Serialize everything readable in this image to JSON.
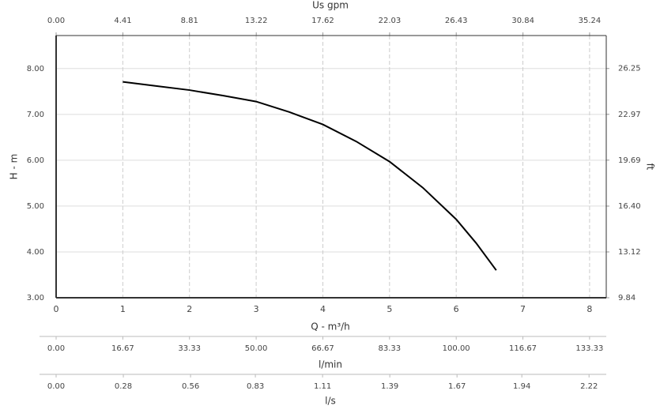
{
  "chart_data": {
    "type": "line",
    "x": [
      1,
      1.5,
      2,
      2.5,
      3,
      3.5,
      4,
      4.5,
      5,
      5.5,
      6,
      6.3,
      6.6
    ],
    "values": [
      7.71,
      7.62,
      7.53,
      7.41,
      7.28,
      7.05,
      6.78,
      6.41,
      5.97,
      5.4,
      4.71,
      4.19,
      3.6
    ],
    "color": "#000000",
    "xlim": [
      0,
      8.25
    ],
    "xticks": [
      0,
      1,
      2,
      3,
      4,
      5,
      6,
      7,
      8
    ],
    "x_label": "Q - m³/h",
    "ylim": [
      3,
      8.72
    ],
    "yticks": [
      {
        "value": 3,
        "label": "3.00"
      },
      {
        "value": 4,
        "label": "4.00"
      },
      {
        "value": 5,
        "label": "5.00"
      },
      {
        "value": 6,
        "label": "6.00"
      },
      {
        "value": 7,
        "label": "7.00"
      },
      {
        "value": 8,
        "label": "8.00"
      }
    ],
    "y_label": "H - m",
    "y2lim": [
      9.84,
      28.61
    ],
    "y2ticks": [
      9.84,
      13.12,
      {
        "value": 16.4,
        "label": "16.40"
      },
      19.69,
      22.97,
      26.25
    ],
    "y2_label": "ft",
    "x2lim": [
      0,
      36.34
    ],
    "x2ticks": [
      {
        "value": 0,
        "label": "0.00"
      },
      4.41,
      8.81,
      13.22,
      17.62,
      22.03,
      26.43,
      30.84,
      35.24
    ],
    "x2_label": "Us gpm",
    "x3lim": [
      0,
      137.5
    ],
    "x3ticks": [
      {
        "value": 0,
        "label": "0.00"
      },
      16.67,
      33.33,
      {
        "value": 50,
        "label": "50.00"
      },
      66.67,
      83.33,
      {
        "value": 100,
        "label": "100.00"
      },
      116.67,
      133.33
    ],
    "x3_label": "l/min",
    "x4lim": [
      0,
      2.2917
    ],
    "x4ticks": [
      {
        "value": 0,
        "label": "0.00"
      },
      0.28,
      0.56,
      0.83,
      1.11,
      1.39,
      1.67,
      1.94,
      2.22
    ],
    "x4_label": "l/s",
    "grid": true
  }
}
